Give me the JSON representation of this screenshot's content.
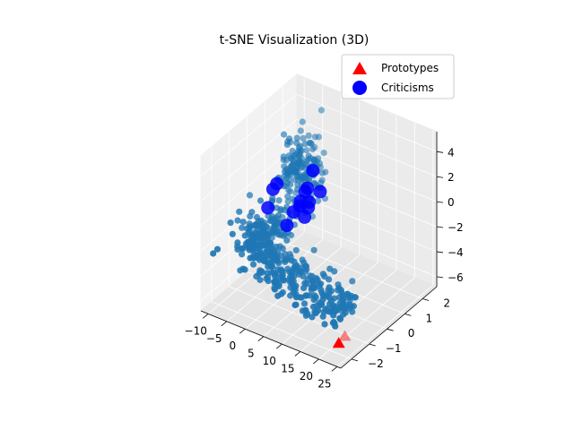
{
  "chart_data": {
    "type": "scatter3d",
    "title": "t-SNE Visualization (3D)",
    "legend_position": "top-right",
    "legend": [
      {
        "label": "Prototypes",
        "marker": "triangle",
        "color": "#ff0000"
      },
      {
        "label": "Criticisms",
        "marker": "circle",
        "color": "#0000ff"
      }
    ],
    "xlim": [
      -12,
      26
    ],
    "ylim": [
      -2.6,
      2.8
    ],
    "zlim": [
      -6.8,
      5.6
    ],
    "x_ticks": [
      -10,
      -5,
      0,
      5,
      10,
      15,
      20,
      25
    ],
    "y_ticks": [
      -2,
      -1,
      0,
      1,
      2
    ],
    "z_ticks": [
      -6,
      -4,
      -2,
      0,
      2,
      4
    ],
    "series_colors": {
      "data": "#1f77b4",
      "prototypes": "#ff0000",
      "criticisms": "#0000ff"
    },
    "data_point_count": 600,
    "prototypes": [
      [
        23.5,
        -2.2,
        -5.6
      ],
      [
        24.2,
        -2.0,
        -5.2
      ]
    ],
    "criticisms": [
      [
        -6.5,
        2.3,
        -3.8
      ],
      [
        -7.0,
        2.2,
        -4.5
      ],
      [
        -3.0,
        1.4,
        -1.0
      ],
      [
        -2.3,
        1.0,
        -1.2
      ],
      [
        -1.8,
        0.5,
        -1.4
      ],
      [
        -1.2,
        0.0,
        -1.8
      ],
      [
        1.0,
        0.7,
        0.6
      ],
      [
        2.0,
        0.8,
        2.0
      ],
      [
        -4.0,
        -0.2,
        1.0
      ],
      [
        -2.0,
        -0.9,
        0.6
      ],
      [
        3.0,
        1.0,
        0.2
      ],
      [
        0.5,
        0.9,
        -0.8
      ],
      [
        -1.5,
        -0.5,
        2.1
      ],
      [
        -0.5,
        0.6,
        -0.9
      ]
    ]
  }
}
